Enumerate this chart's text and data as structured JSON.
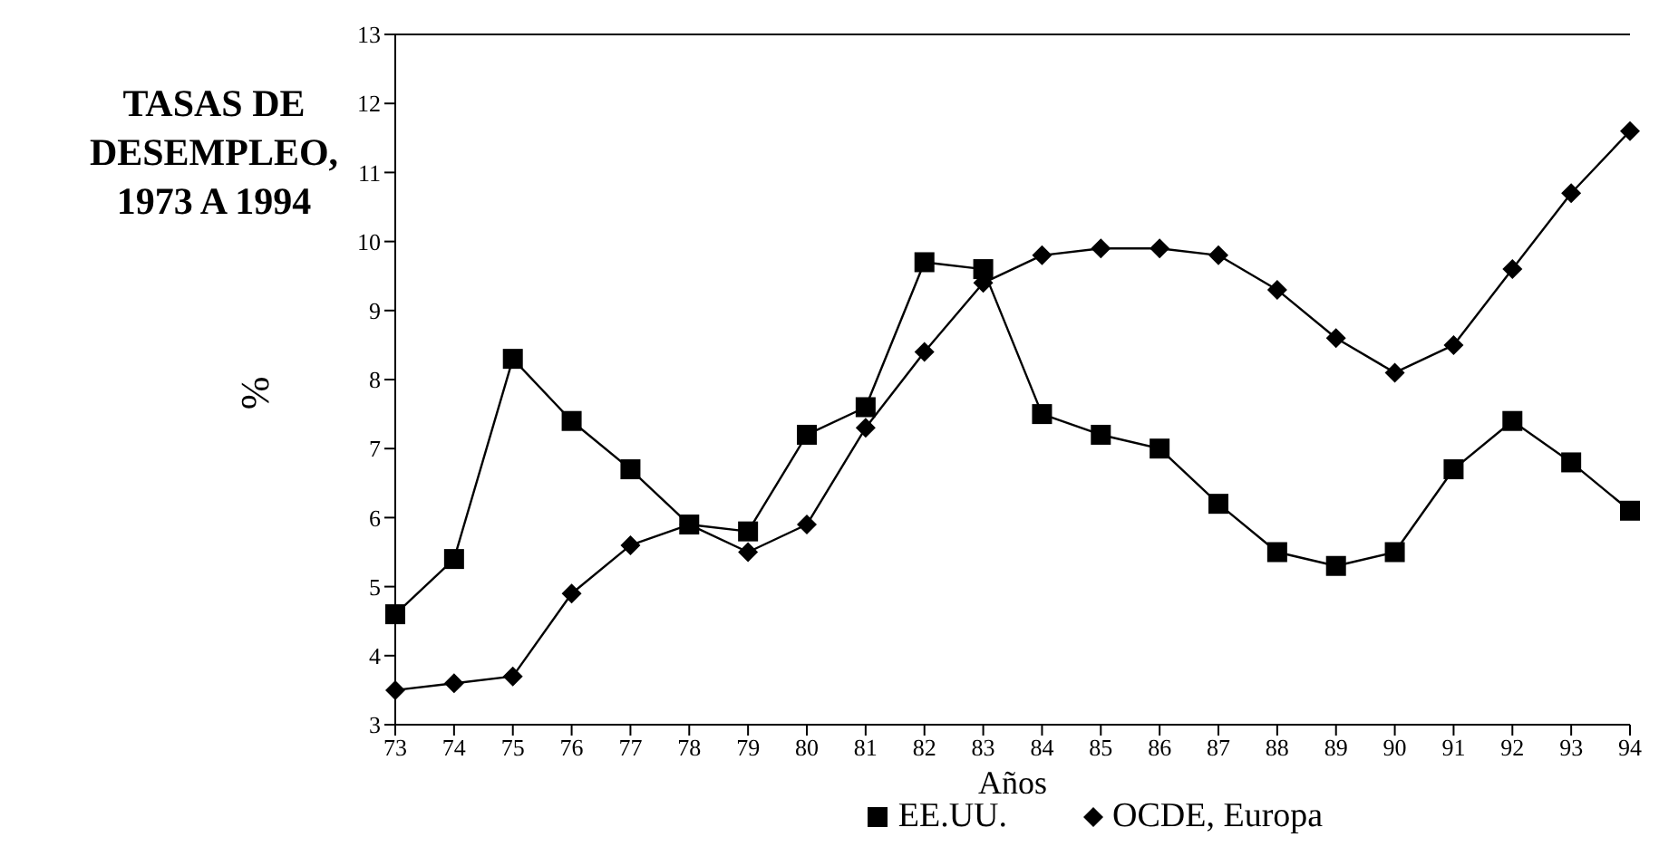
{
  "chart_data": {
    "type": "line",
    "title": "TASAS DE DESEMPLEO, 1973 A 1994",
    "xlabel": "Años",
    "ylabel": "%",
    "categories": [
      "73",
      "74",
      "75",
      "76",
      "77",
      "78",
      "79",
      "80",
      "81",
      "82",
      "83",
      "84",
      "85",
      "86",
      "87",
      "88",
      "89",
      "90",
      "91",
      "92",
      "93",
      "94"
    ],
    "series": [
      {
        "name": "EE.UU.",
        "color": "#000000",
        "marker": "square",
        "values": [
          4.6,
          5.4,
          8.3,
          7.4,
          6.7,
          5.9,
          5.8,
          7.2,
          7.6,
          9.7,
          9.6,
          7.5,
          7.2,
          7.0,
          6.2,
          5.5,
          5.3,
          5.5,
          6.7,
          7.4,
          6.8,
          6.1
        ]
      },
      {
        "name": "OCDE, Europa",
        "color": "#000000",
        "marker": "diamond",
        "values": [
          3.5,
          3.6,
          3.7,
          4.9,
          5.6,
          5.9,
          5.5,
          5.9,
          7.3,
          8.4,
          9.4,
          9.8,
          9.9,
          9.9,
          9.8,
          9.3,
          8.6,
          8.1,
          8.5,
          9.6,
          10.7,
          11.6
        ]
      }
    ],
    "ylim": [
      3,
      13
    ],
    "yticks": [
      3,
      4,
      5,
      6,
      7,
      8,
      9,
      10,
      11,
      12,
      13
    ],
    "grid": false,
    "legend": "bottom"
  }
}
